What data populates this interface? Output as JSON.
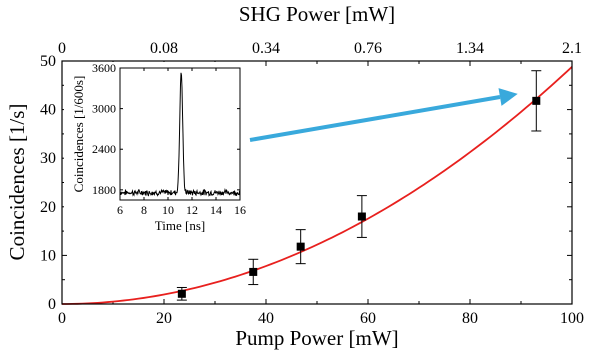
{
  "chart_data": [
    {
      "type": "scatter",
      "xlabel": "Pump Power [mW]",
      "ylabel": "Coincidences [1/s]",
      "x2label": "SHG Power [mW]",
      "xlim": [
        0,
        100
      ],
      "ylim": [
        0,
        50
      ],
      "xticks": [
        "0",
        "20",
        "40",
        "60",
        "80",
        "100"
      ],
      "yticks": [
        "0",
        "10",
        "20",
        "30",
        "40",
        "50"
      ],
      "x2ticks": [
        {
          "value": 0,
          "label": "0"
        },
        {
          "value": 20,
          "label": "0.08"
        },
        {
          "value": 40,
          "label": "0.34"
        },
        {
          "value": 60,
          "label": "0.76"
        },
        {
          "value": 80,
          "label": "1.34"
        },
        {
          "value": 100,
          "label": "2.1"
        }
      ],
      "series": [
        {
          "kind": "errorbar",
          "color": "#000000",
          "points": [
            {
              "x": 23.5,
              "y": 2.1,
              "yerr": 1.3
            },
            {
              "x": 37.5,
              "y": 6.6,
              "yerr": 2.6
            },
            {
              "x": 46.8,
              "y": 11.8,
              "yerr": 3.5
            },
            {
              "x": 58.8,
              "y": 18.0,
              "yerr": 4.3
            },
            {
              "x": 93.0,
              "y": 41.8,
              "yerr": 6.2
            }
          ]
        },
        {
          "kind": "fit",
          "color": "#e8201e",
          "function": "y = 0.00488 * x^2"
        }
      ],
      "annotation_arrow": {
        "color": "#39a9dc"
      },
      "grid": false
    },
    {
      "type": "line",
      "inset": true,
      "xlabel": "Time [ns]",
      "ylabel": "Coincidences [1/600s]",
      "xlim": [
        6,
        16
      ],
      "ylim": [
        1650,
        3600
      ],
      "xticks": [
        "6",
        "8",
        "10",
        "12",
        "14",
        "16"
      ],
      "yticks": [
        "1800",
        "2400",
        "3000",
        "3600"
      ],
      "baseline": 1760,
      "peak": {
        "x": 11.1,
        "y": 3550
      },
      "color": "#000000"
    }
  ]
}
